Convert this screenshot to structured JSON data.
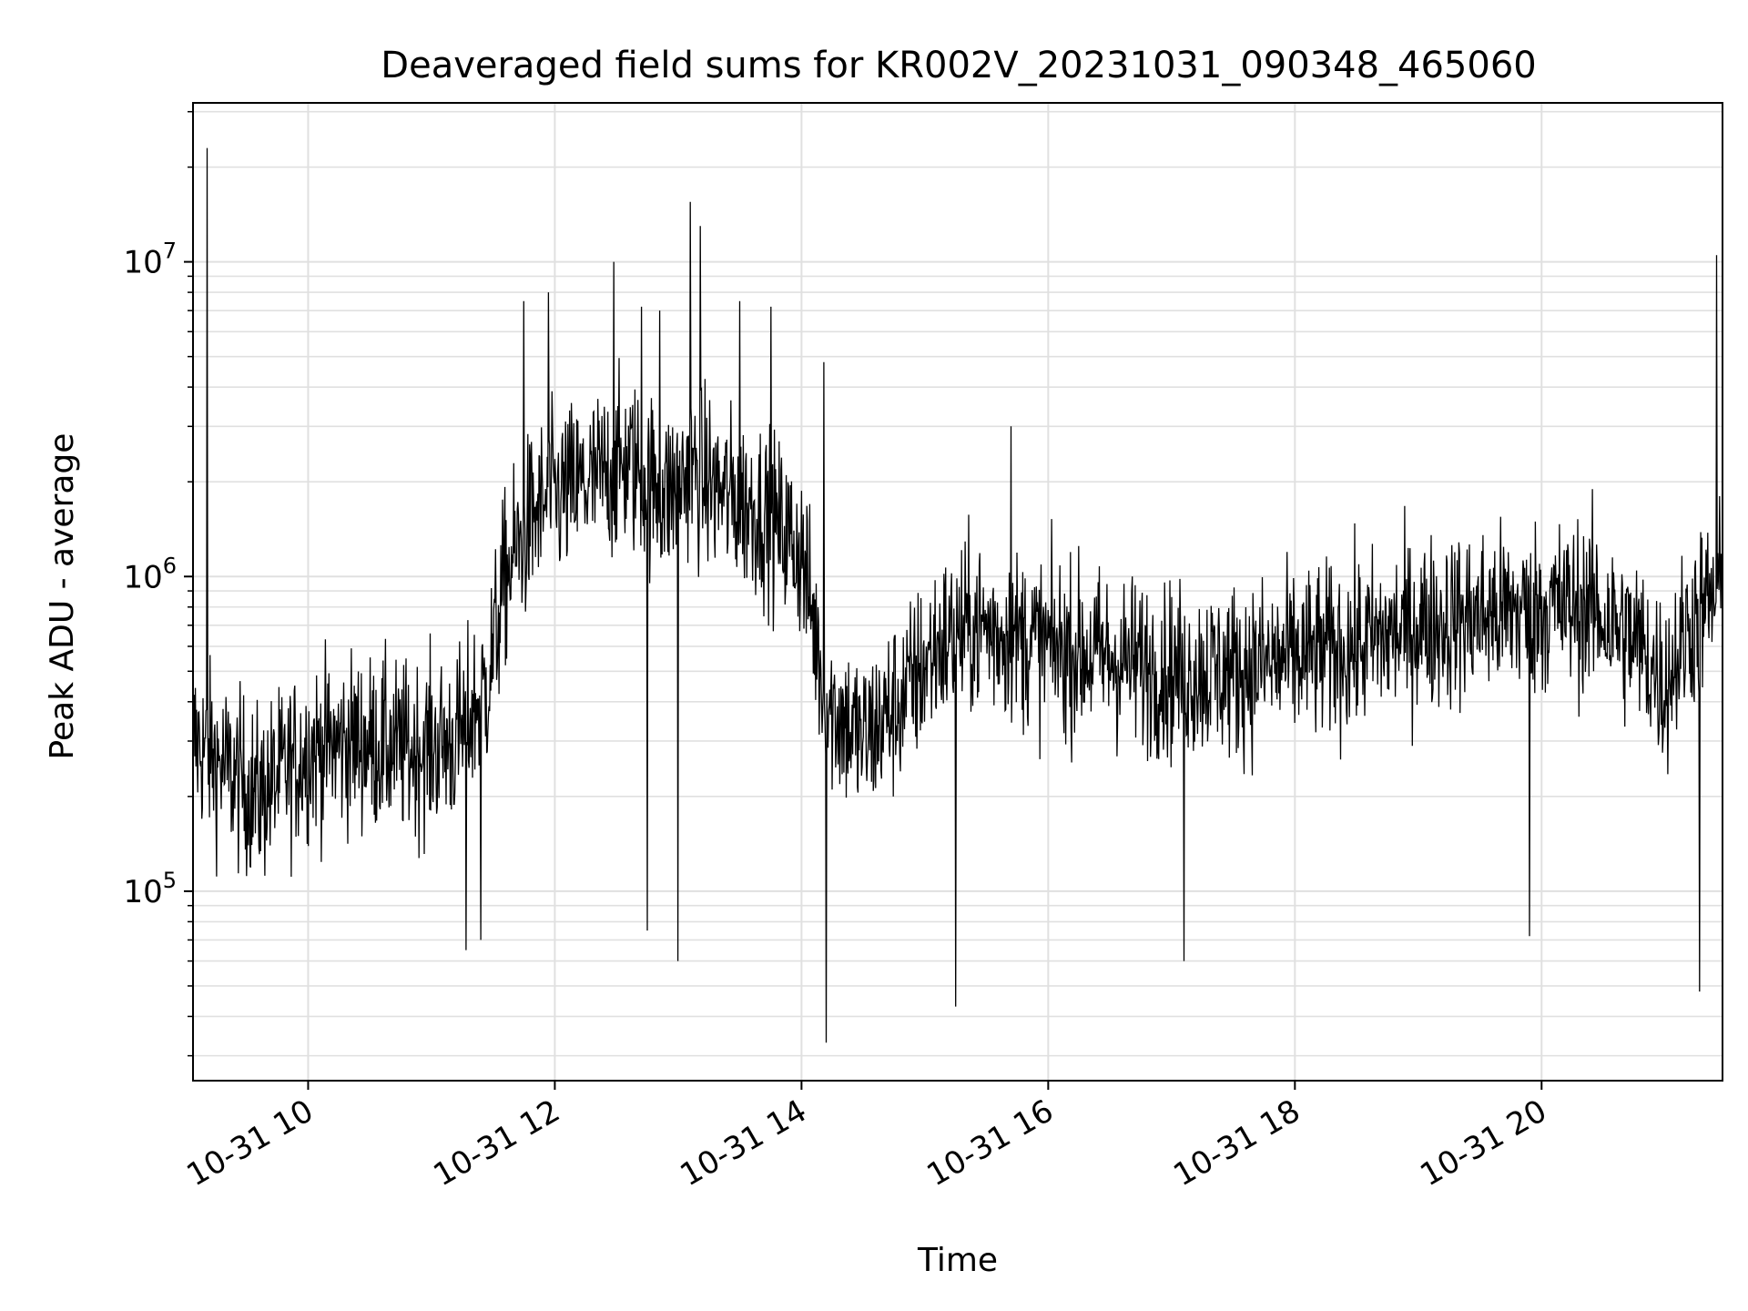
{
  "chart_data": {
    "type": "line",
    "title": "Deaveraged field sums for KR002V_20231031_090348_465060",
    "xlabel": "Time",
    "ylabel": "Peak ADU - average",
    "yscale": "log",
    "grid": true,
    "line_color": "#000000",
    "grid_color": "#e0e0e0",
    "xlim": [
      "10-31 09:04",
      "10-31 21:28"
    ],
    "ylim": [
      25000,
      32000000
    ],
    "x_ticks": [
      "10-31 10",
      "10-31 12",
      "10-31 14",
      "10-31 16",
      "10-31 18",
      "10-31 20"
    ],
    "y_ticks": [
      {
        "base": "10",
        "exp": "5",
        "value": 100000
      },
      {
        "base": "10",
        "exp": "6",
        "value": 1000000
      },
      {
        "base": "10",
        "exp": "7",
        "value": 10000000
      }
    ],
    "series": [
      {
        "x_unit": "hour of 2023-10-31",
        "points": [
          [
            9.08,
            300000
          ],
          [
            9.3,
            250000
          ],
          [
            9.6,
            200000
          ],
          [
            10.0,
            280000
          ],
          [
            10.4,
            300000
          ],
          [
            10.8,
            280000
          ],
          [
            11.2,
            300000
          ],
          [
            11.45,
            450000
          ],
          [
            11.6,
            1000000
          ],
          [
            11.8,
            1500000
          ],
          [
            12.0,
            1800000
          ],
          [
            12.3,
            2000000
          ],
          [
            12.6,
            2300000
          ],
          [
            12.9,
            1800000
          ],
          [
            13.1,
            2200000
          ],
          [
            13.4,
            1800000
          ],
          [
            13.7,
            1600000
          ],
          [
            14.0,
            1200000
          ],
          [
            14.2,
            400000
          ],
          [
            14.5,
            300000
          ],
          [
            14.8,
            400000
          ],
          [
            15.1,
            600000
          ],
          [
            15.4,
            700000
          ],
          [
            15.7,
            650000
          ],
          [
            16.0,
            600000
          ],
          [
            16.5,
            550000
          ],
          [
            17.0,
            500000
          ],
          [
            17.5,
            500000
          ],
          [
            18.0,
            550000
          ],
          [
            18.5,
            600000
          ],
          [
            19.0,
            700000
          ],
          [
            19.5,
            750000
          ],
          [
            20.0,
            800000
          ],
          [
            20.4,
            800000
          ],
          [
            20.8,
            600000
          ],
          [
            21.0,
            450000
          ],
          [
            21.2,
            700000
          ],
          [
            21.45,
            900000
          ]
        ],
        "spikes_high": [
          [
            9.18,
            23000000
          ],
          [
            11.75,
            7500000
          ],
          [
            11.95,
            8000000
          ],
          [
            12.48,
            10000000
          ],
          [
            12.7,
            7200000
          ],
          [
            12.85,
            7000000
          ],
          [
            13.1,
            15500000
          ],
          [
            13.18,
            13000000
          ],
          [
            13.5,
            7500000
          ],
          [
            13.75,
            7200000
          ],
          [
            14.18,
            4800000
          ],
          [
            15.7,
            3000000
          ],
          [
            21.42,
            10500000
          ]
        ],
        "spikes_low": [
          [
            11.28,
            65000
          ],
          [
            11.4,
            70000
          ],
          [
            12.75,
            75000
          ],
          [
            13.0,
            60000
          ],
          [
            14.2,
            33000
          ],
          [
            15.25,
            43000
          ],
          [
            17.1,
            60000
          ],
          [
            19.9,
            72000
          ],
          [
            21.28,
            48000
          ]
        ]
      }
    ]
  }
}
